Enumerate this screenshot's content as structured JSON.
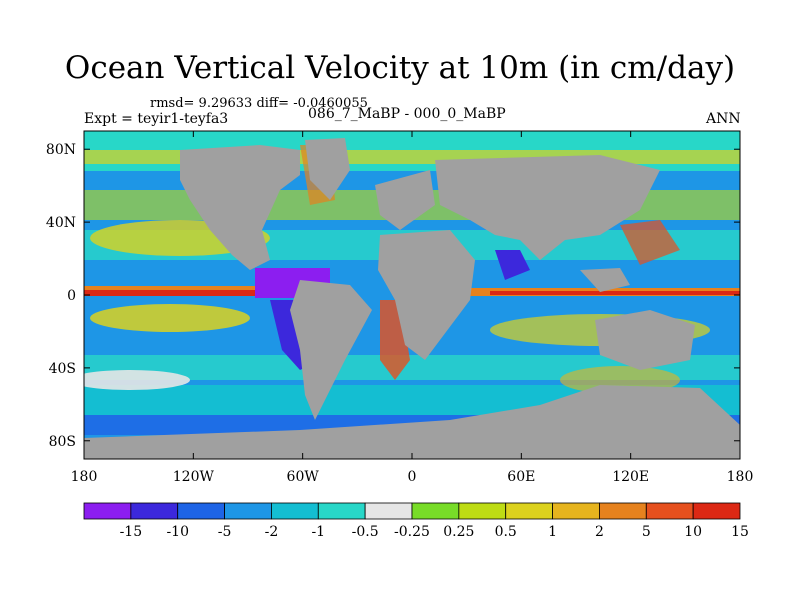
{
  "title": "Ocean Vertical Velocity at 10m (in cm/day)",
  "stats": "rmsd= 9.29633  diff= -0.0460055",
  "expt": "Expt = teyir1-teyfa3",
  "diff_case": "086_7_MaBP - 000_0_MaBP",
  "season": "ANN",
  "map": {
    "lon_range": [
      -180,
      180
    ],
    "lat_range": [
      -90,
      90
    ],
    "land_color": "#a0a0a0",
    "lat_ticks": [
      {
        "value": 80,
        "label": "80N"
      },
      {
        "value": 40,
        "label": "40N"
      },
      {
        "value": 0,
        "label": "0"
      },
      {
        "value": -40,
        "label": "40S"
      },
      {
        "value": -80,
        "label": "80S"
      }
    ],
    "lon_ticks": [
      {
        "value": -180,
        "label": "180"
      },
      {
        "value": -120,
        "label": "120W"
      },
      {
        "value": -60,
        "label": "60W"
      },
      {
        "value": 0,
        "label": "0"
      },
      {
        "value": 60,
        "label": "60E"
      },
      {
        "value": 120,
        "label": "120E"
      },
      {
        "value": 180,
        "label": "180"
      }
    ]
  },
  "colorbar": {
    "colors": [
      "#8c1ef0",
      "#3c28dc",
      "#1e64e6",
      "#1e96e6",
      "#14bed2",
      "#28d7c8",
      "#e6e6e6",
      "#78dc28",
      "#bedc14",
      "#dcd21e",
      "#e6b41e",
      "#e6821e",
      "#e6501e",
      "#dc2814"
    ],
    "labels": [
      "-15",
      "-10",
      "-5",
      "-2",
      "-1",
      "-0.5",
      "-0.25",
      "0.25",
      "0.5",
      "1",
      "2",
      "5",
      "10",
      "15"
    ]
  }
}
